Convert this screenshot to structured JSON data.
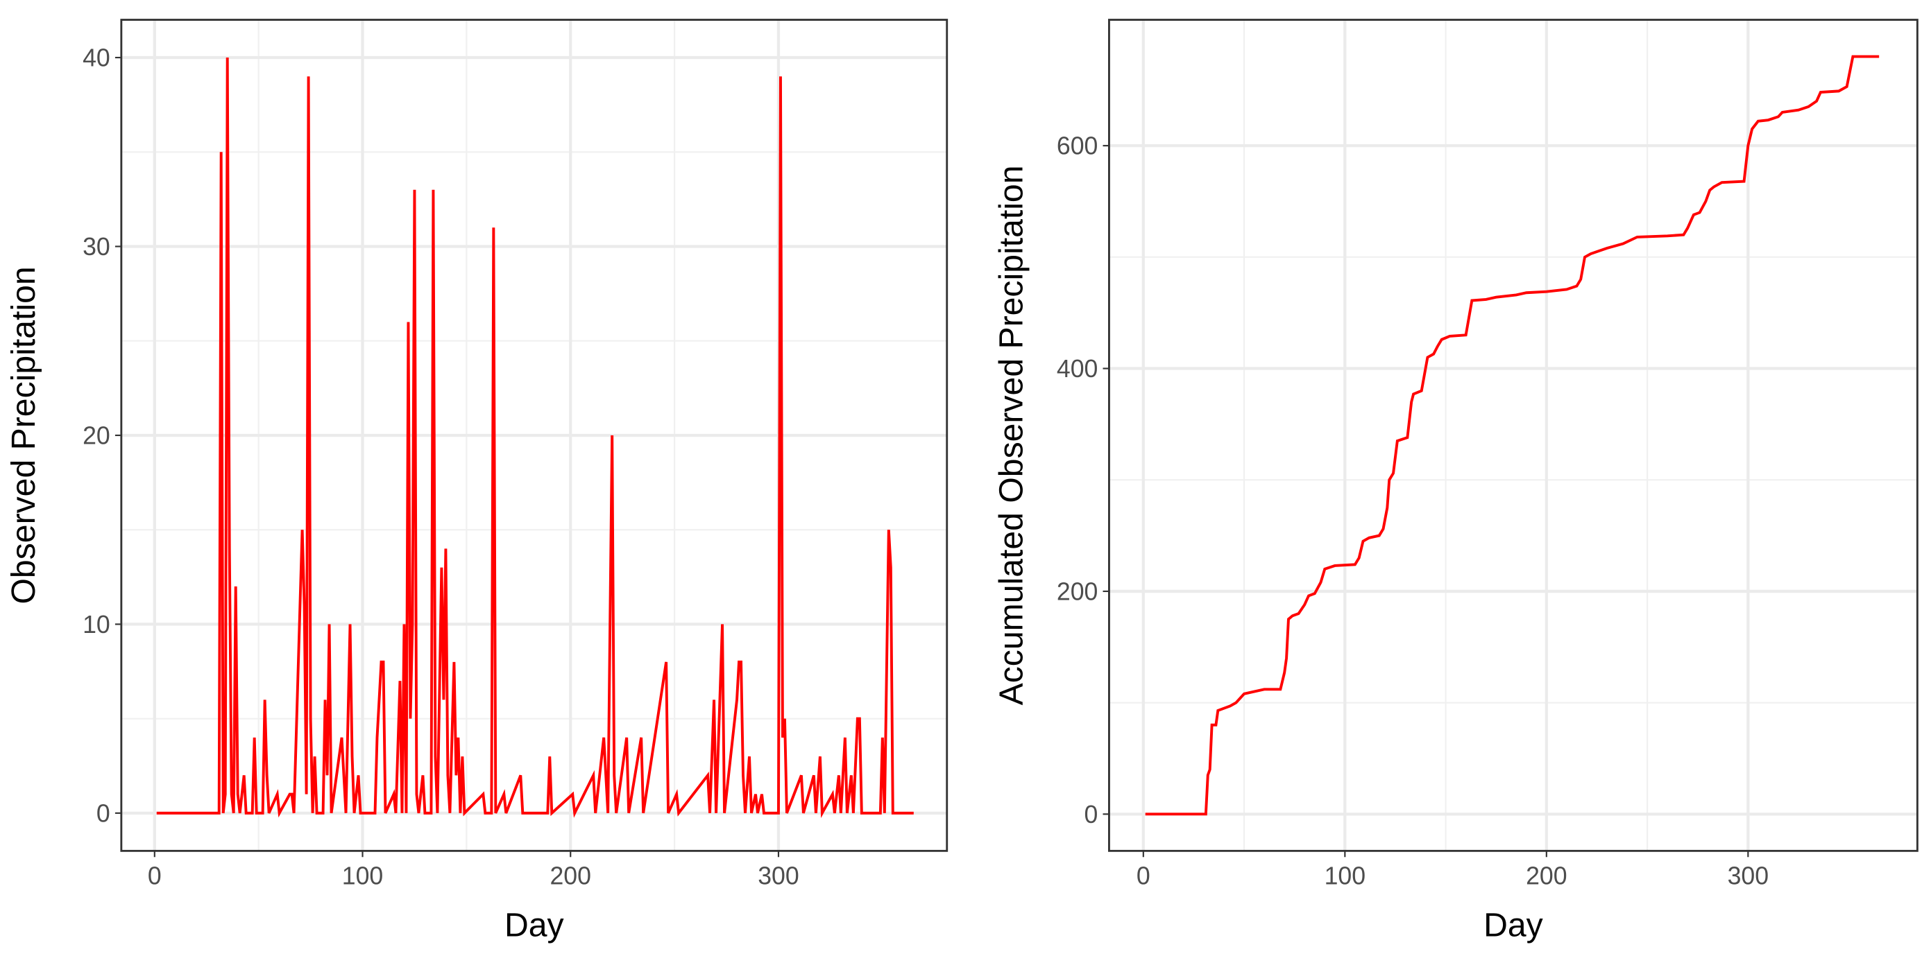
{
  "chart_data": [
    {
      "type": "line",
      "x_label": "Day",
      "y_label": "Observed Precipitation",
      "color": "#ff0000",
      "grid": true,
      "minor_grid": true,
      "xlim": [
        -16,
        381
      ],
      "ylim": [
        -2,
        42
      ],
      "xticks": [
        0,
        100,
        200,
        300
      ],
      "yticks": [
        0,
        10,
        20,
        30,
        40
      ],
      "x": [
        1,
        31,
        32,
        33,
        34,
        35,
        36,
        37,
        38,
        39,
        40,
        41,
        43,
        44,
        47,
        48,
        49,
        52,
        53,
        54,
        55,
        59,
        60,
        65,
        66,
        67,
        71,
        72,
        73,
        74,
        75,
        76,
        77,
        78,
        81,
        82,
        83,
        84,
        85,
        90,
        91,
        92,
        94,
        95,
        96,
        98,
        99,
        106,
        107,
        109,
        110,
        111,
        115,
        116,
        118,
        119,
        120,
        121,
        122,
        123,
        124,
        125,
        126,
        127,
        129,
        130,
        133,
        134,
        135,
        136,
        138,
        139,
        140,
        141,
        142,
        144,
        145,
        146,
        147,
        148,
        149,
        158,
        159,
        162,
        163,
        164,
        168,
        169,
        176,
        177,
        189,
        190,
        191,
        201,
        202,
        211,
        212,
        216,
        217,
        218,
        220,
        221,
        222,
        227,
        228,
        234,
        235,
        246,
        247,
        251,
        252,
        266,
        267,
        269,
        270,
        273,
        274,
        280,
        281,
        282,
        283,
        284,
        286,
        287,
        289,
        290,
        292,
        293,
        300,
        301,
        302,
        303,
        304,
        311,
        312,
        317,
        318,
        320,
        321,
        326,
        327,
        329,
        330,
        332,
        333,
        335,
        336,
        338,
        339,
        340,
        349,
        350,
        351,
        353,
        354,
        355,
        365
      ],
      "values": [
        0,
        0,
        35,
        0,
        1,
        40,
        14,
        1,
        0,
        12,
        1,
        0,
        2,
        0,
        0,
        4,
        0,
        0,
        6,
        2,
        0,
        1,
        0,
        1,
        1,
        0,
        15,
        11,
        1,
        39,
        5,
        0,
        3,
        0,
        0,
        6,
        2,
        10,
        0,
        4,
        2,
        0,
        10,
        3,
        0,
        2,
        0,
        0,
        4,
        8,
        8,
        0,
        1,
        0,
        7,
        0,
        10,
        0,
        26,
        5,
        10,
        33,
        1,
        0,
        2,
        0,
        0,
        33,
        3,
        0,
        13,
        6,
        14,
        2,
        0,
        8,
        2,
        4,
        0,
        3,
        0,
        1,
        0,
        0,
        31,
        0,
        1,
        0,
        2,
        0,
        0,
        3,
        0,
        1,
        0,
        2,
        0,
        4,
        2,
        0,
        20,
        2,
        0,
        4,
        0,
        4,
        0,
        8,
        0,
        1,
        0,
        2,
        0,
        6,
        0,
        10,
        0,
        6,
        8,
        8,
        2,
        0,
        3,
        0,
        1,
        0,
        1,
        0,
        0,
        39,
        4,
        5,
        0,
        2,
        0,
        2,
        0,
        3,
        0,
        1,
        0,
        2,
        0,
        4,
        0,
        2,
        0,
        5,
        5,
        0,
        0,
        4,
        0,
        15,
        13,
        0,
        0
      ]
    },
    {
      "type": "line",
      "x_label": "Day",
      "y_label": "Accumulated Observed Precipitation",
      "color": "#ff0000",
      "grid": true,
      "minor_grid": true,
      "xlim": [
        -17,
        384
      ],
      "ylim": [
        -33,
        713
      ],
      "xticks": [
        0,
        100,
        200,
        300
      ],
      "yticks": [
        0,
        200,
        400,
        600
      ],
      "x": [
        1,
        31,
        32,
        33,
        34,
        36,
        37,
        40,
        43,
        46,
        48,
        50,
        55,
        60,
        68,
        70,
        71,
        72,
        74,
        77,
        80,
        82,
        85,
        88,
        90,
        95,
        105,
        107,
        109,
        112,
        117,
        119,
        121,
        122,
        124,
        126,
        131,
        133,
        134,
        138,
        140,
        141,
        144,
        146,
        148,
        152,
        160,
        163,
        170,
        175,
        185,
        190,
        200,
        210,
        215,
        217,
        219,
        222,
        230,
        238,
        245,
        260,
        268,
        270,
        273,
        276,
        279,
        281,
        283,
        287,
        298,
        300,
        302,
        305,
        310,
        315,
        317,
        325,
        330,
        334,
        336,
        345,
        349,
        350,
        352,
        365
      ],
      "values": [
        0,
        0,
        35,
        40,
        80,
        80,
        93,
        95,
        97,
        100,
        104,
        108,
        110,
        112,
        112,
        127,
        140,
        175,
        178,
        180,
        188,
        196,
        198,
        208,
        220,
        223,
        224,
        230,
        245,
        248,
        250,
        256,
        275,
        300,
        306,
        335,
        338,
        370,
        377,
        380,
        400,
        410,
        413,
        420,
        426,
        429,
        430,
        461,
        462,
        464,
        466,
        468,
        469,
        471,
        474,
        480,
        500,
        503,
        508,
        512,
        518,
        519,
        520,
        526,
        538,
        540,
        550,
        560,
        563,
        567,
        568,
        600,
        615,
        622,
        623,
        626,
        630,
        632,
        635,
        640,
        648,
        649,
        653,
        662,
        680,
        680
      ]
    }
  ]
}
